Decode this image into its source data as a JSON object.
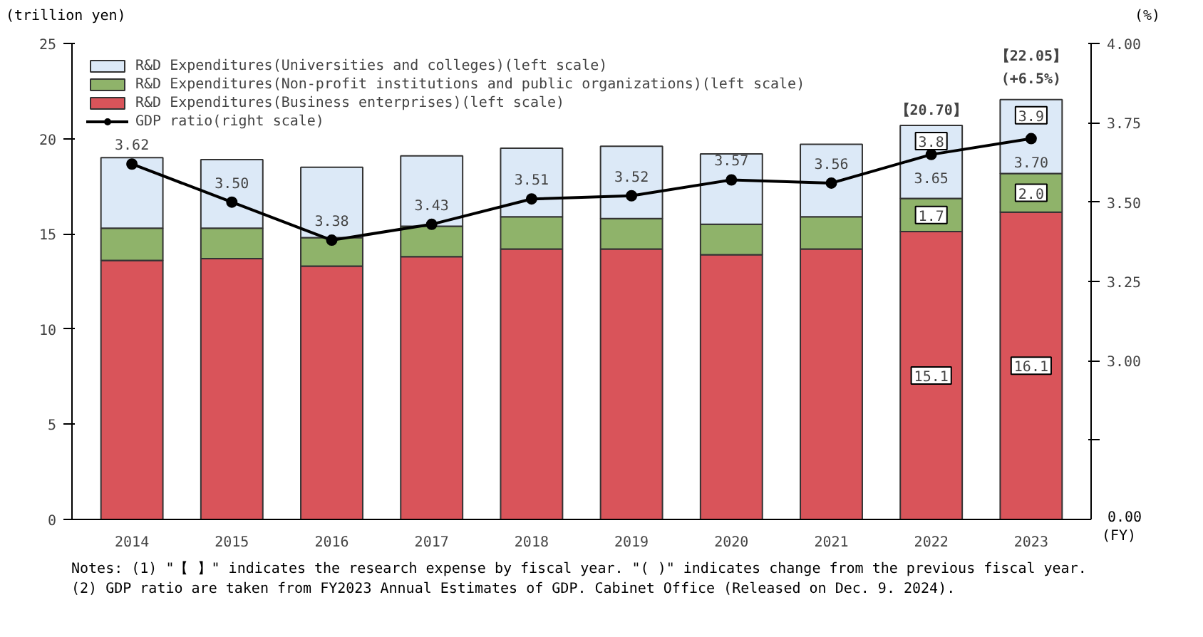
{
  "chart_data": {
    "type": "bar",
    "stacked": true,
    "categories": [
      "2014",
      "2015",
      "2016",
      "2017",
      "2018",
      "2019",
      "2020",
      "2021",
      "2022",
      "2023"
    ],
    "ylabel": "(trillion yen)",
    "y2label": "(%)",
    "xlabel": "(FY)",
    "ylim": [
      0,
      25
    ],
    "yticks": [
      0,
      5,
      10,
      15,
      20,
      25
    ],
    "y2lim": [
      2.5,
      4.0
    ],
    "y2ticks": [
      {
        "value": 2.75,
        "label": null
      },
      {
        "value": 3.0,
        "label": "3.00"
      },
      {
        "value": 3.25,
        "label": "3.25"
      },
      {
        "value": 3.5,
        "label": "3.50"
      },
      {
        "value": 3.75,
        "label": "3.75"
      },
      {
        "value": 4.0,
        "label": "4.00"
      }
    ],
    "legend": "top left",
    "series": [
      {
        "name": "R&D Expenditures(Business enterprises)(left scale)",
        "color": "#d9545a",
        "values": [
          13.6,
          13.7,
          13.3,
          13.8,
          14.2,
          14.2,
          13.9,
          14.2,
          15.12,
          16.14
        ],
        "value_labels": [
          null,
          null,
          null,
          null,
          null,
          null,
          null,
          null,
          "15.1",
          "16.1"
        ]
      },
      {
        "name": "R&D Expenditures(Non-profit institutions and public organizations)(left scale)",
        "color": "#8fb36a",
        "values": [
          1.7,
          1.6,
          1.5,
          1.6,
          1.7,
          1.6,
          1.6,
          1.7,
          1.74,
          2.03
        ],
        "value_labels": [
          null,
          null,
          null,
          null,
          null,
          null,
          null,
          null,
          "1.7",
          "2.0"
        ]
      },
      {
        "name": "R&D Expenditures(Universities and colleges)(left scale)",
        "color": "#dce9f7",
        "values": [
          3.7,
          3.6,
          3.7,
          3.7,
          3.6,
          3.8,
          3.7,
          3.8,
          3.84,
          3.88
        ],
        "value_labels": [
          null,
          null,
          null,
          null,
          null,
          null,
          null,
          null,
          "3.8",
          "3.9"
        ]
      },
      {
        "name": "GDP ratio(right scale)",
        "type": "line",
        "axis": "y2",
        "color": "#000000",
        "marker": "circle",
        "values": [
          3.62,
          3.5,
          3.38,
          3.43,
          3.51,
          3.52,
          3.57,
          3.56,
          3.65,
          3.7
        ],
        "value_labels": [
          "3.62",
          "3.50",
          "3.38",
          "3.43",
          "3.51",
          "3.52",
          "3.57",
          "3.56",
          "3.65",
          "3.70"
        ]
      }
    ],
    "totals": [
      null,
      null,
      null,
      null,
      null,
      null,
      null,
      null,
      "【20.70】",
      "【22.05】"
    ],
    "annotations": [
      "0.00",
      "(+6.5%)",
      "Notes: (1) \"【 】\" indicates the research expense by fiscal year. \"( )\" indicates change from the previous fiscal year.",
      "(2) GDP ratio are taken from FY2023 Annual Estimates of GDP. Cabinet Office (Released on Dec. 9. 2024)."
    ]
  }
}
